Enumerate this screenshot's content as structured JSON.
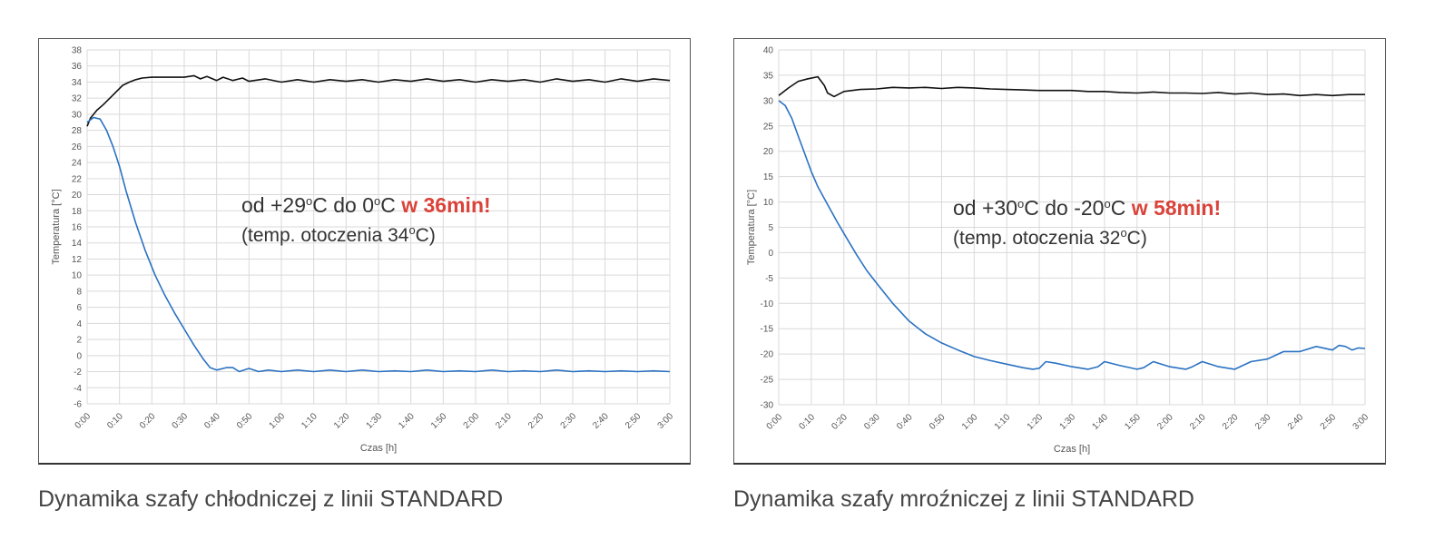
{
  "captions": {
    "left": "Dynamika szafy chłodniczej z linii STANDARD",
    "right": "Dynamika szafy mroźniczej z linii STANDARD"
  },
  "annotations": {
    "left": {
      "l1_a": "od +29",
      "l1_b": "o",
      "l1_c": "C do 0",
      "l1_d": "o",
      "l1_e": "C ",
      "highlight": "w 36min!",
      "l2_a": "(temp. otoczenia 34",
      "l2_b": "o",
      "l2_c": "C)"
    },
    "right": {
      "l1_a": "od +30",
      "l1_b": "o",
      "l1_c": "C do -20",
      "l1_d": "o",
      "l1_e": "C ",
      "highlight": "w 58min!",
      "l2_a": "(temp. otoczenia 32",
      "l2_b": "o",
      "l2_c": "C)"
    }
  },
  "colors": {
    "highlight": "#d9433a",
    "ambient_series": "#111111",
    "chamber_series": "#2a72c2",
    "grid": "#d9d9d9"
  },
  "chart_data": [
    {
      "type": "line",
      "xlabel": "Czas [h]",
      "ylabel": "Temperatura [°C]",
      "x_unit": "minutes",
      "xlim": [
        0,
        180
      ],
      "ylim": [
        -6,
        38
      ],
      "yticks": [
        -6,
        -4,
        -2,
        0,
        2,
        4,
        6,
        8,
        10,
        12,
        14,
        16,
        18,
        20,
        22,
        24,
        26,
        28,
        30,
        32,
        34,
        36,
        38
      ],
      "xtick_labels": [
        "0:00",
        "0:10",
        "0:20",
        "0:30",
        "0:40",
        "0:50",
        "1:00",
        "1:10",
        "1:20",
        "1:30",
        "1:40",
        "1:50",
        "2:00",
        "2:10",
        "2:20",
        "2:30",
        "2:40",
        "2:50",
        "3:00"
      ],
      "grid": true,
      "series": [
        {
          "x": [
            0,
            1,
            3,
            5,
            7,
            9,
            11,
            13,
            15,
            17,
            20,
            25,
            30,
            33,
            35,
            37,
            40,
            42,
            45,
            48,
            50,
            55,
            60,
            65,
            70,
            75,
            80,
            85,
            90,
            95,
            100,
            105,
            110,
            115,
            120,
            125,
            130,
            135,
            140,
            145,
            150,
            155,
            160,
            165,
            170,
            175,
            180
          ],
          "values": [
            28.5,
            29.5,
            30.5,
            31.2,
            32.0,
            32.8,
            33.6,
            34.0,
            34.3,
            34.5,
            34.6,
            34.6,
            34.6,
            34.8,
            34.4,
            34.7,
            34.2,
            34.6,
            34.2,
            34.5,
            34.1,
            34.4,
            34.0,
            34.3,
            34.0,
            34.3,
            34.1,
            34.3,
            34.0,
            34.3,
            34.1,
            34.4,
            34.1,
            34.3,
            34.0,
            34.3,
            34.1,
            34.3,
            34.0,
            34.4,
            34.1,
            34.3,
            34.0,
            34.4,
            34.1,
            34.4,
            34.2
          ]
        },
        {
          "x": [
            0,
            2,
            4,
            6,
            8,
            10,
            12,
            15,
            18,
            21,
            24,
            27,
            30,
            33,
            36,
            38,
            40,
            43,
            45,
            47,
            50,
            53,
            56,
            60,
            65,
            70,
            75,
            80,
            85,
            90,
            95,
            100,
            105,
            110,
            115,
            120,
            125,
            130,
            135,
            140,
            145,
            150,
            155,
            160,
            165,
            170,
            175,
            180
          ],
          "values": [
            29.0,
            29.6,
            29.4,
            28.0,
            26.0,
            23.5,
            20.5,
            16.5,
            13.0,
            10.0,
            7.5,
            5.3,
            3.3,
            1.3,
            -0.5,
            -1.5,
            -1.8,
            -1.5,
            -1.5,
            -2.0,
            -1.6,
            -2.0,
            -1.8,
            -2.0,
            -1.8,
            -2.0,
            -1.8,
            -2.0,
            -1.8,
            -2.0,
            -1.9,
            -2.0,
            -1.8,
            -2.0,
            -1.9,
            -2.0,
            -1.8,
            -2.0,
            -1.9,
            -2.0,
            -1.8,
            -2.0,
            -1.9,
            -2.0,
            -1.9,
            -2.0,
            -1.9,
            -2.0
          ]
        }
      ]
    },
    {
      "type": "line",
      "xlabel": "Czas [h]",
      "ylabel": "Temperatura [°C]",
      "x_unit": "minutes",
      "xlim": [
        0,
        180
      ],
      "ylim": [
        -30,
        40
      ],
      "yticks": [
        -30,
        -25,
        -20,
        -15,
        -10,
        -5,
        0,
        5,
        10,
        15,
        20,
        25,
        30,
        35,
        40
      ],
      "xtick_labels": [
        "0:00",
        "0:10",
        "0:20",
        "0:30",
        "0:40",
        "0:50",
        "1:00",
        "1:10",
        "1:20",
        "1:30",
        "1:40",
        "1:50",
        "2:00",
        "2:10",
        "2:20",
        "2:30",
        "2:40",
        "2:50",
        "3:00"
      ],
      "grid": true,
      "series": [
        {
          "x": [
            0,
            3,
            6,
            9,
            12,
            14,
            15,
            17,
            20,
            25,
            30,
            35,
            40,
            45,
            50,
            55,
            60,
            65,
            70,
            75,
            80,
            85,
            90,
            95,
            100,
            105,
            110,
            115,
            120,
            125,
            130,
            135,
            140,
            145,
            150,
            155,
            160,
            165,
            170,
            175,
            180
          ],
          "values": [
            31.0,
            32.5,
            33.8,
            34.3,
            34.7,
            33.0,
            31.5,
            30.8,
            31.8,
            32.2,
            32.3,
            32.6,
            32.5,
            32.6,
            32.4,
            32.6,
            32.5,
            32.3,
            32.2,
            32.1,
            32.0,
            32.0,
            32.0,
            31.8,
            31.8,
            31.6,
            31.5,
            31.7,
            31.5,
            31.5,
            31.4,
            31.6,
            31.3,
            31.5,
            31.2,
            31.3,
            31.0,
            31.2,
            31.0,
            31.2,
            31.2
          ]
        },
        {
          "x": [
            0,
            2,
            4,
            6,
            8,
            10,
            12,
            15,
            18,
            21,
            24,
            27,
            30,
            35,
            40,
            45,
            50,
            55,
            60,
            65,
            70,
            75,
            78,
            80,
            82,
            85,
            90,
            95,
            98,
            100,
            105,
            110,
            112,
            115,
            120,
            125,
            127,
            130,
            135,
            140,
            145,
            150,
            155,
            160,
            165,
            170,
            172,
            174,
            176,
            178,
            180
          ],
          "values": [
            30.0,
            29.0,
            26.5,
            23.0,
            19.5,
            16.0,
            13.0,
            9.5,
            6.0,
            2.7,
            -0.5,
            -3.5,
            -6.0,
            -10.0,
            -13.5,
            -16.0,
            -17.8,
            -19.2,
            -20.5,
            -21.3,
            -22.0,
            -22.7,
            -23.0,
            -22.8,
            -21.5,
            -21.8,
            -22.5,
            -23.0,
            -22.5,
            -21.5,
            -22.3,
            -23.0,
            -22.7,
            -21.5,
            -22.5,
            -23.0,
            -22.5,
            -21.5,
            -22.5,
            -23.0,
            -21.5,
            -21.0,
            -19.5,
            -19.5,
            -18.5,
            -19.2,
            -18.3,
            -18.5,
            -19.2,
            -18.8,
            -18.9
          ]
        }
      ]
    }
  ]
}
